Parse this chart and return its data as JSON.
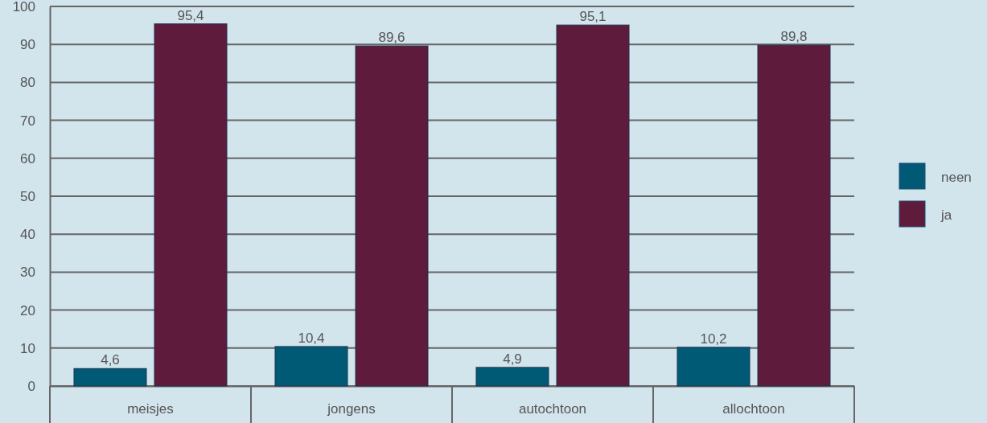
{
  "chart_data": {
    "type": "bar",
    "categories": [
      "meisjes",
      "jongens",
      "autochtoon",
      "allochtoon"
    ],
    "series": [
      {
        "name": "neen",
        "color": "#005a75",
        "values": [
          4.6,
          10.4,
          4.9,
          10.2
        ],
        "value_labels": [
          "4,6",
          "10,4",
          "4,9",
          "10,2"
        ]
      },
      {
        "name": "ja",
        "color": "#5e1b3c",
        "values": [
          95.4,
          89.6,
          95.1,
          89.8
        ],
        "value_labels": [
          "95,4",
          "89,6",
          "95,1",
          "89,8"
        ]
      }
    ],
    "ylim": [
      0,
      100
    ],
    "yticks": [
      0,
      10,
      20,
      30,
      40,
      50,
      60,
      70,
      80,
      90,
      100
    ],
    "grid": "y",
    "legend": "right"
  }
}
